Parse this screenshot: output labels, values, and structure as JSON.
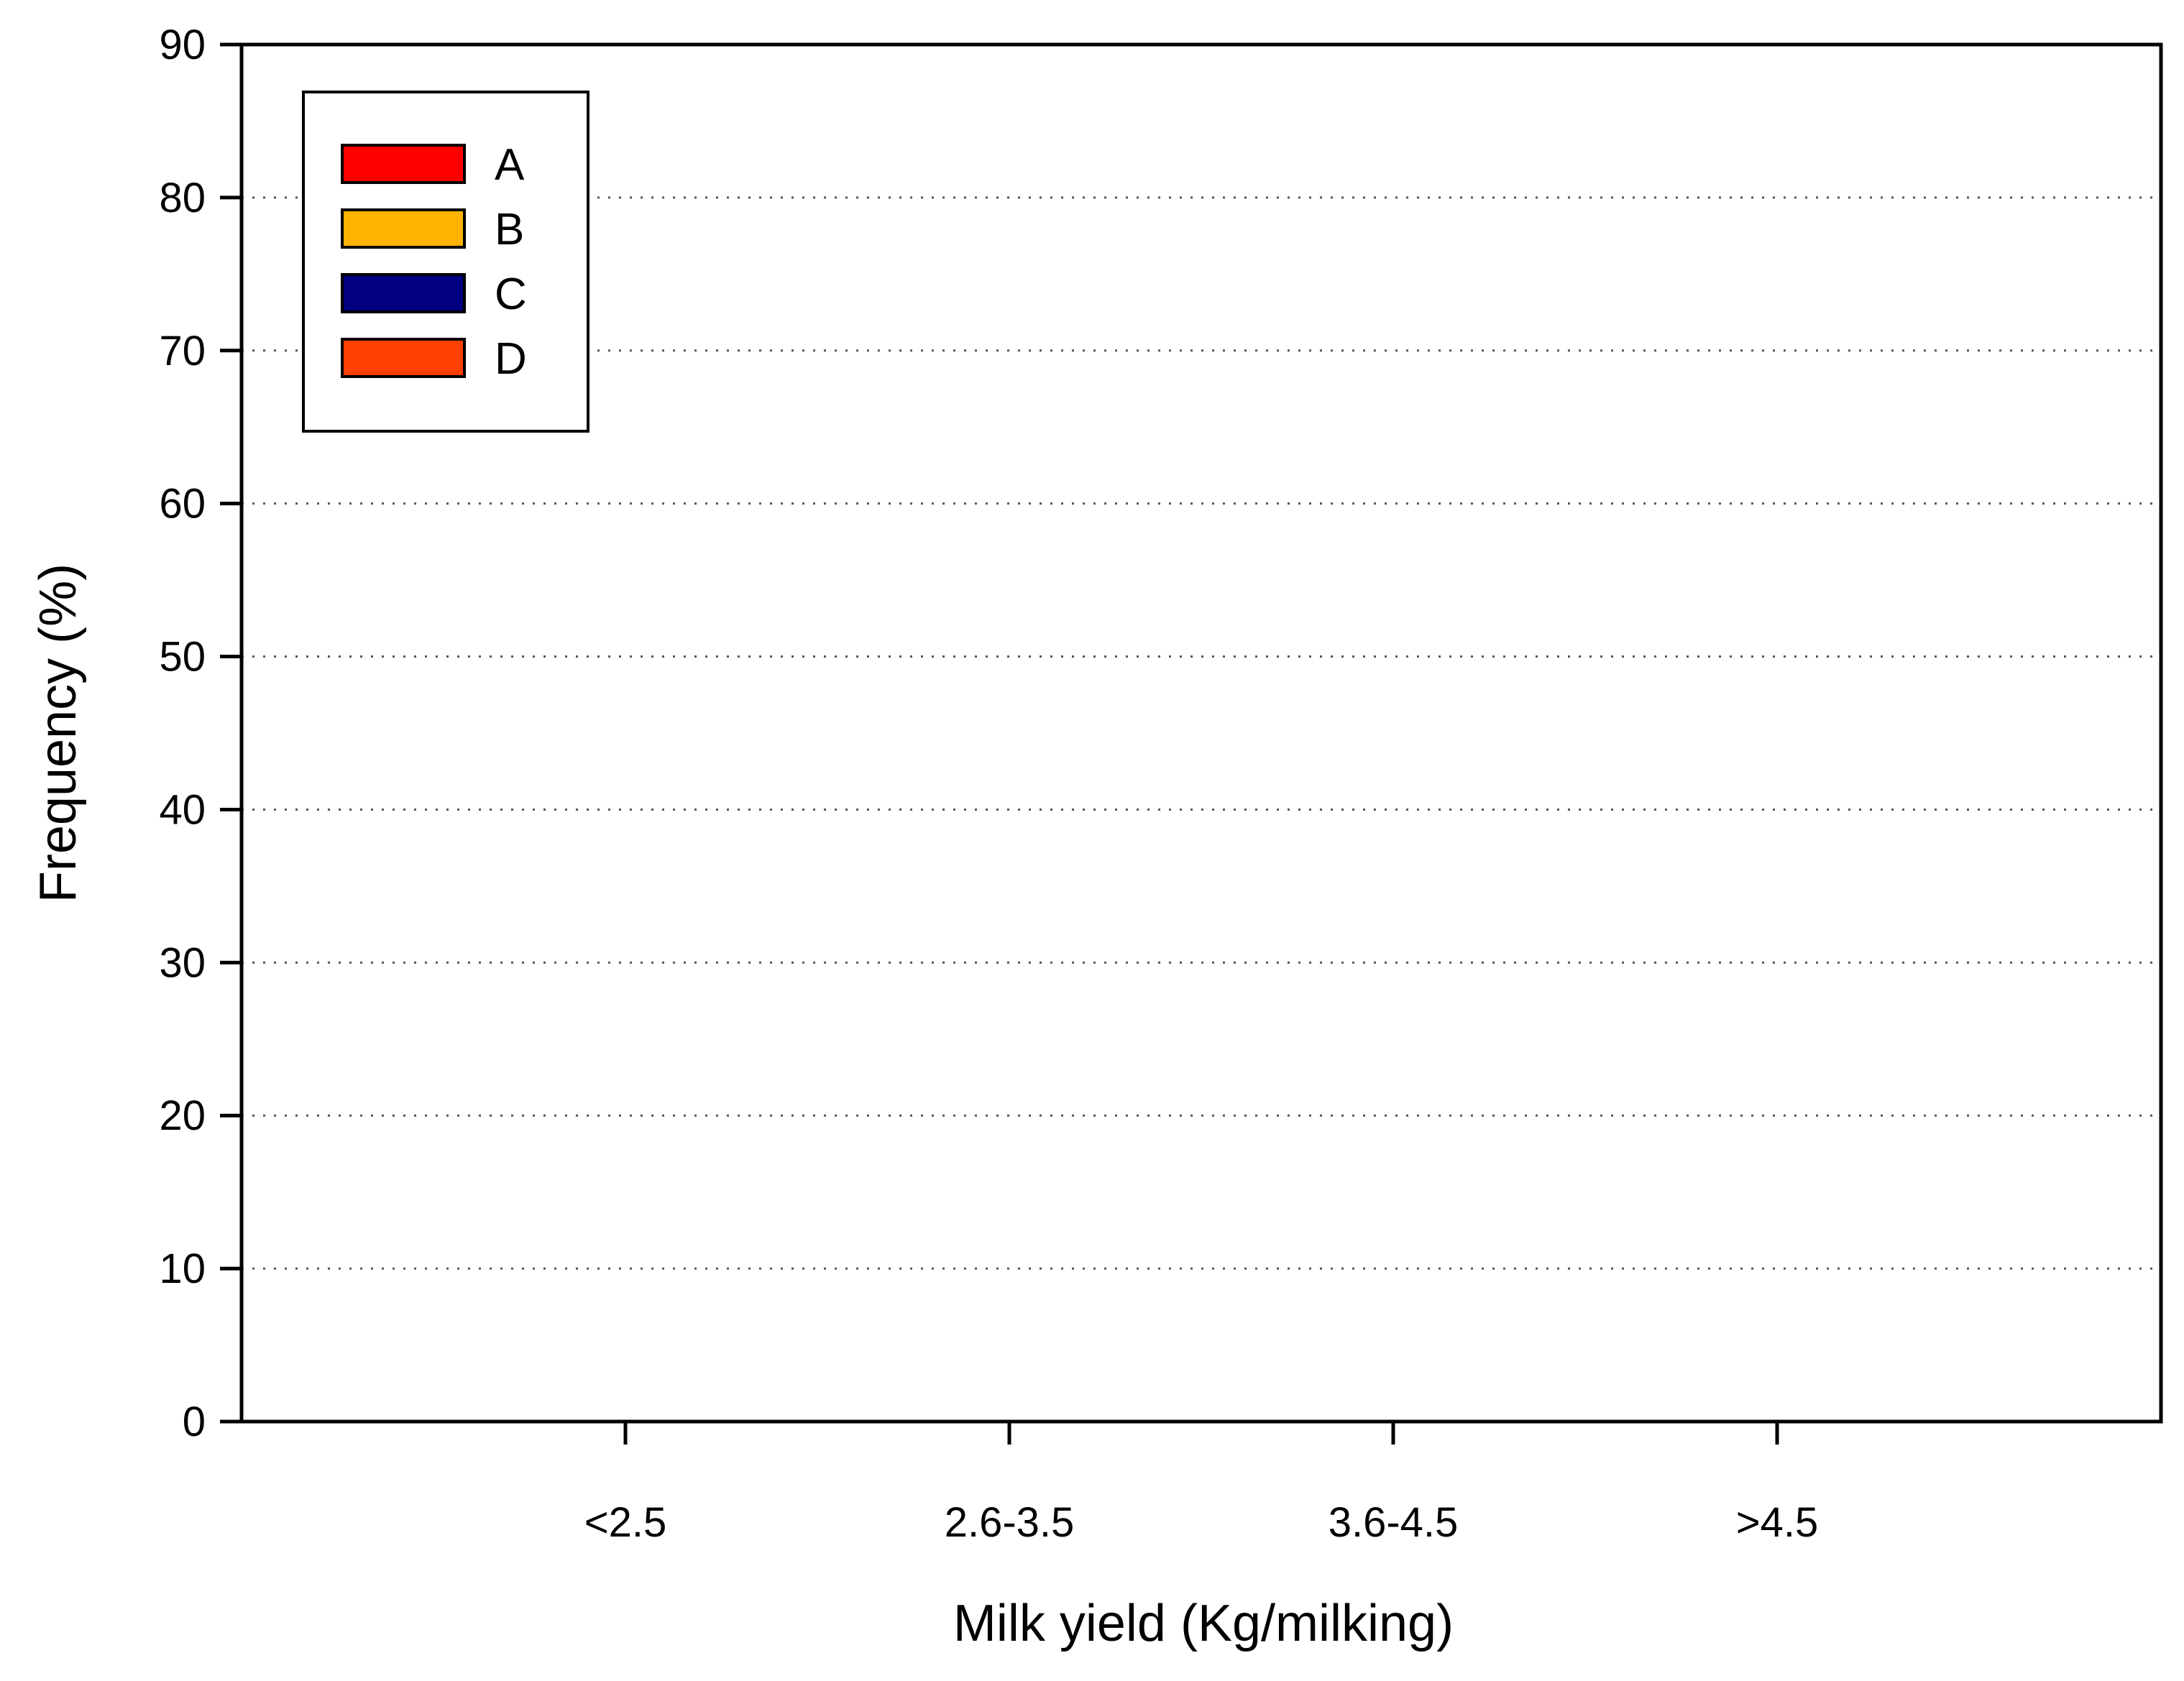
{
  "chart_data": {
    "type": "bar",
    "title": "",
    "xlabel": "Milk yield (Kg/milking)",
    "ylabel": "Frequency (%)",
    "categories": [
      "<2.5",
      "2.6-3.5",
      "3.6-4.5",
      ">4.5"
    ],
    "yticks": [
      "0",
      "10",
      "20",
      "30",
      "40",
      "50",
      "60",
      "70",
      "80",
      "90"
    ],
    "ylim": [
      0,
      90
    ],
    "grid": "horizontal dotted",
    "legend_position": "top-left",
    "series": [
      {
        "name": "A",
        "color": "#ff0000",
        "values": [
          null,
          null,
          null,
          null
        ]
      },
      {
        "name": "B",
        "color": "#ffb300",
        "values": [
          null,
          null,
          null,
          null
        ]
      },
      {
        "name": "C",
        "color": "#000080",
        "values": [
          null,
          null,
          null,
          null
        ]
      },
      {
        "name": "D",
        "color": "#ff4000",
        "values": [
          null,
          null,
          null,
          null
        ]
      }
    ]
  }
}
